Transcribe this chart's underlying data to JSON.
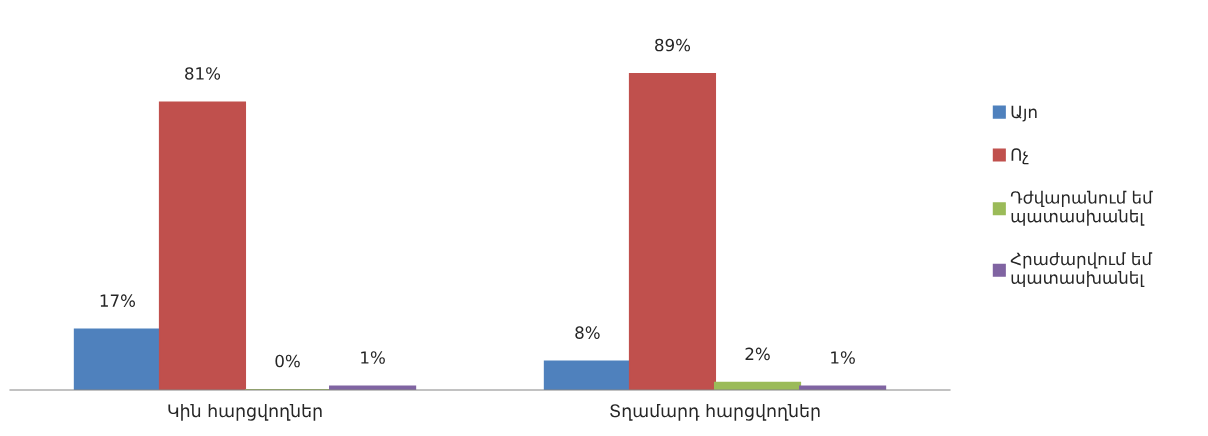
{
  "chart_data": {
    "type": "bar",
    "categories": [
      "Կին հարցվողներ",
      "Տղամարդ հարցվողներ"
    ],
    "series": [
      {
        "name": "Այո",
        "color": "#4f81bd",
        "values": [
          17,
          8
        ],
        "value_labels": [
          "17%",
          "8%"
        ]
      },
      {
        "name": "Ոչ",
        "color": "#c0504d",
        "values": [
          81,
          89
        ],
        "value_labels": [
          "81%",
          "89%"
        ]
      },
      {
        "name": "Դժվարանում եմ պատասխանել",
        "color": "#9bbb59",
        "values": [
          0,
          2
        ],
        "value_labels": [
          "0%",
          "2%"
        ]
      },
      {
        "name": "Հրաժարվում եմ պատասխանել",
        "color": "#8064a2",
        "values": [
          1,
          1
        ],
        "value_labels": [
          "1%",
          "1%"
        ]
      }
    ],
    "legend": "right",
    "grid": false
  }
}
